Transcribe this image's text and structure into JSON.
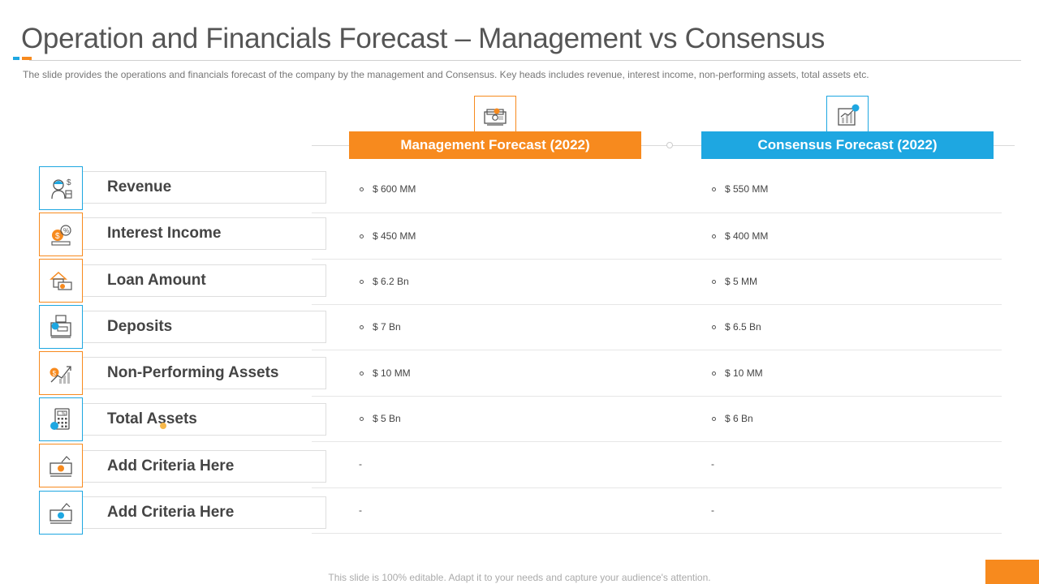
{
  "title": "Operation and Financials Forecast – Management vs Consensus",
  "subtitle": "The slide provides  the operations  and financials forecast of the company by the management  and Consensus. Key heads includes revenue,  interest income, non-performing  assets, total assets etc.",
  "colors": {
    "orange": "#f78a1e",
    "blue": "#1ea7e1"
  },
  "columns": [
    {
      "label": "Management Forecast (2022)",
      "icon": "money-bills-icon",
      "color": "#f78a1e"
    },
    {
      "label": "Consensus Forecast (2022)",
      "icon": "growth-chart-icon",
      "color": "#1ea7e1"
    }
  ],
  "rows": [
    {
      "label": "Revenue",
      "icon": "person-dollar-icon",
      "management": "$ 600 MM",
      "consensus": "$ 550 MM"
    },
    {
      "label": "Interest Income",
      "icon": "coin-percent-icon",
      "management": "$ 450 MM",
      "consensus": "$ 400 MM"
    },
    {
      "label": "Loan Amount",
      "icon": "house-money-icon",
      "management": "$ 6.2 Bn",
      "consensus": "$ 5 MM"
    },
    {
      "label": "Deposits",
      "icon": "safe-deposit-icon",
      "management": "$ 7 Bn",
      "consensus": "$ 6.5 Bn"
    },
    {
      "label": "Non-Performing Assets",
      "icon": "declining-chart-icon",
      "management": "$ 10 MM",
      "consensus": "$ 10 MM"
    },
    {
      "label": "Total Assets",
      "icon": "calculator-icon",
      "management": "$ 5 Bn",
      "consensus": "$ 6 Bn"
    },
    {
      "label": "Add Criteria Here",
      "icon": "cash-hand-icon",
      "management": "-",
      "consensus": "-"
    },
    {
      "label": "Add Criteria Here",
      "icon": "cash-hand-icon",
      "management": "-",
      "consensus": "-"
    }
  ],
  "footer": "This slide is 100% editable. Adapt it to your needs and capture your audience's attention."
}
